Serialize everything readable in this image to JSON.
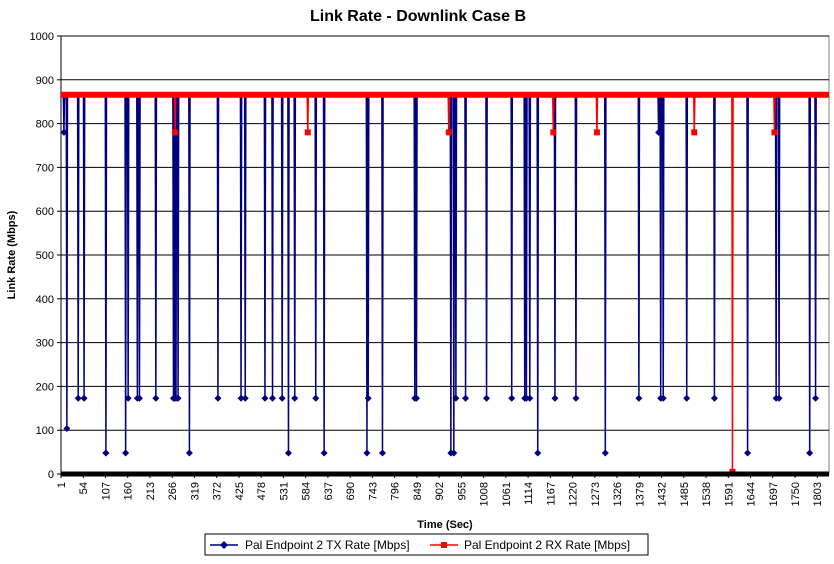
{
  "chart_data": {
    "type": "line",
    "title": "Link Rate - Downlink Case B",
    "xlabel": "Time (Sec)",
    "ylabel": "Link Rate (Mbps)",
    "ylim": [
      0,
      1000
    ],
    "xlim": [
      1,
      1831
    ],
    "y_ticks": [
      0,
      100,
      200,
      300,
      400,
      500,
      600,
      700,
      800,
      900,
      1000
    ],
    "x_ticks": [
      1,
      54,
      107,
      160,
      213,
      266,
      319,
      372,
      425,
      478,
      531,
      584,
      637,
      690,
      743,
      796,
      849,
      902,
      955,
      1008,
      1061,
      1114,
      1167,
      1220,
      1273,
      1326,
      1379,
      1432,
      1485,
      1538,
      1591,
      1644,
      1697,
      1750,
      1803
    ],
    "grid": "horizontal",
    "legend_position": "bottom",
    "series": [
      {
        "name": "Pal Endpoint 2 TX Rate [Mbps]",
        "color": "#000080",
        "baseline": 866,
        "dips": [
          [
            8,
            780
          ],
          [
            15,
            104
          ],
          [
            42,
            173
          ],
          [
            56,
            173
          ],
          [
            108,
            48
          ],
          [
            108,
            48
          ],
          [
            155,
            48
          ],
          [
            161,
            173
          ],
          [
            183,
            173
          ],
          [
            188,
            173
          ],
          [
            227,
            173
          ],
          [
            269,
            173
          ],
          [
            272,
            173
          ],
          [
            275,
            173
          ],
          [
            280,
            173
          ],
          [
            307,
            48
          ],
          [
            375,
            173
          ],
          [
            430,
            173
          ],
          [
            440,
            173
          ],
          [
            487,
            173
          ],
          [
            505,
            173
          ],
          [
            528,
            173
          ],
          [
            543,
            48
          ],
          [
            558,
            173
          ],
          [
            608,
            173
          ],
          [
            628,
            48
          ],
          [
            730,
            48
          ],
          [
            733,
            173
          ],
          [
            767,
            48
          ],
          [
            844,
            173
          ],
          [
            848,
            173
          ],
          [
            930,
            48
          ],
          [
            937,
            48
          ],
          [
            942,
            173
          ],
          [
            965,
            173
          ],
          [
            1015,
            173
          ],
          [
            1075,
            173
          ],
          [
            1106,
            173
          ],
          [
            1110,
            173
          ],
          [
            1118,
            173
          ],
          [
            1137,
            48
          ],
          [
            1178,
            173
          ],
          [
            1228,
            173
          ],
          [
            1298,
            48
          ],
          [
            1378,
            173
          ],
          [
            1425,
            780
          ],
          [
            1430,
            173
          ],
          [
            1436,
            173
          ],
          [
            1492,
            173
          ],
          [
            1558,
            173
          ],
          [
            1637,
            48
          ],
          [
            1705,
            173
          ],
          [
            1712,
            173
          ],
          [
            1785,
            48
          ],
          [
            1799,
            173
          ]
        ]
      },
      {
        "name": "Pal Endpoint 2 RX Rate [Mbps]",
        "color": "#ff0000",
        "baseline": 866,
        "dips": [
          [
            273,
            780
          ],
          [
            589,
            780
          ],
          [
            925,
            780
          ],
          [
            1174,
            780
          ],
          [
            1278,
            780
          ],
          [
            1510,
            780
          ],
          [
            1601,
            5
          ],
          [
            1701,
            780
          ]
        ]
      }
    ]
  }
}
